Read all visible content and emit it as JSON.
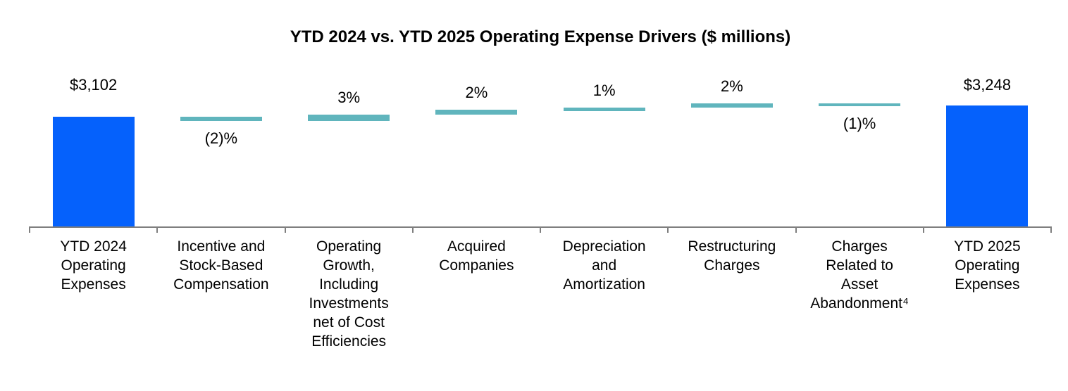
{
  "chart_data": {
    "type": "waterfall",
    "title": "YTD 2024 vs. YTD 2025 Operating Expense Drivers ($ millions)",
    "unit": "$ millions",
    "legend": false,
    "gridlines": false,
    "columns": [
      {
        "role": "total",
        "value": 3102,
        "value_label": "$3,102",
        "label_position": "above",
        "category": "YTD 2024 Operating Expenses",
        "category_lines": [
          "YTD 2024",
          "Operating",
          "Expenses"
        ]
      },
      {
        "role": "delta",
        "value_pct": -2,
        "value_label": "(2)%",
        "label_position": "below",
        "category": "Incentive and Stock-Based Compensation",
        "category_lines": [
          "Incentive and",
          "Stock-Based",
          "Compensation"
        ]
      },
      {
        "role": "delta",
        "value_pct": 3,
        "value_label": "3%",
        "label_position": "above",
        "category": "Operating Growth, Including Investments net of Cost Efficiencies",
        "category_lines": [
          "Operating",
          "Growth,",
          "Including",
          "Investments",
          "net of Cost",
          "Efficiencies"
        ]
      },
      {
        "role": "delta",
        "value_pct": 2,
        "value_label": "2%",
        "label_position": "above",
        "category": "Acquired Companies",
        "category_lines": [
          "Acquired",
          "Companies"
        ]
      },
      {
        "role": "delta",
        "value_pct": 1,
        "value_label": "1%",
        "label_position": "above",
        "category": "Depreciation and Amortization",
        "category_lines": [
          "Depreciation",
          "and",
          "Amortization"
        ]
      },
      {
        "role": "delta",
        "value_pct": 2,
        "value_label": "2%",
        "label_position": "above",
        "category": "Restructuring Charges",
        "category_lines": [
          "Restructuring",
          "Charges"
        ]
      },
      {
        "role": "delta",
        "value_pct": -1,
        "value_label": "(1)%",
        "label_position": "below",
        "category": "Charges Related to Asset Abandonment⁴",
        "category_lines": [
          "Charges",
          "Related to",
          "Asset",
          "Abandonment⁴"
        ]
      },
      {
        "role": "total",
        "value": 3248,
        "value_label": "$3,248",
        "label_position": "above",
        "category": "YTD 2025 Operating Expenses",
        "category_lines": [
          "YTD 2025",
          "Operating",
          "Expenses"
        ]
      }
    ],
    "colors": {
      "total_bar": "#0561fc",
      "delta_bar": "#60b5bd",
      "axis": "#7f7f7f",
      "text": "#000000"
    }
  }
}
